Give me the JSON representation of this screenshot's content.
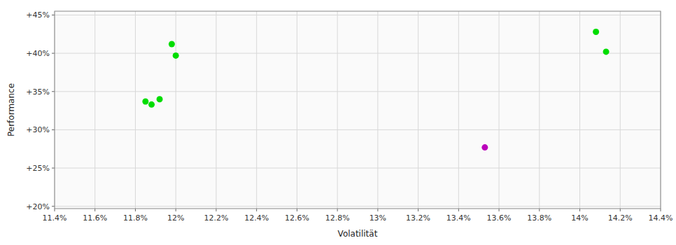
{
  "chart_data": {
    "type": "scatter",
    "xlabel": "Volatilität",
    "ylabel": "Performance",
    "xlim": [
      0.114,
      0.144
    ],
    "ylim": [
      0.197,
      0.455
    ],
    "xticks": [
      {
        "value": 0.114,
        "label": "11.4%"
      },
      {
        "value": 0.116,
        "label": "11.6%"
      },
      {
        "value": 0.118,
        "label": "11.8%"
      },
      {
        "value": 0.12,
        "label": "12%"
      },
      {
        "value": 0.122,
        "label": "12.2%"
      },
      {
        "value": 0.124,
        "label": "12.4%"
      },
      {
        "value": 0.126,
        "label": "12.6%"
      },
      {
        "value": 0.128,
        "label": "12.8%"
      },
      {
        "value": 0.13,
        "label": "13%"
      },
      {
        "value": 0.132,
        "label": "13.2%"
      },
      {
        "value": 0.134,
        "label": "13.4%"
      },
      {
        "value": 0.136,
        "label": "13.6%"
      },
      {
        "value": 0.138,
        "label": "13.8%"
      },
      {
        "value": 0.14,
        "label": "14%"
      },
      {
        "value": 0.142,
        "label": "14.2%"
      },
      {
        "value": 0.144,
        "label": "14.4%"
      }
    ],
    "yticks": [
      {
        "value": 0.2,
        "label": "+20%"
      },
      {
        "value": 0.25,
        "label": "+25%"
      },
      {
        "value": 0.3,
        "label": "+30%"
      },
      {
        "value": 0.35,
        "label": "+35%"
      },
      {
        "value": 0.4,
        "label": "+40%"
      },
      {
        "value": 0.45,
        "label": "+45%"
      }
    ],
    "grid": true,
    "series": [
      {
        "color": "#00dd00",
        "x": [
          0.1185,
          0.1188,
          0.1192,
          0.1198,
          0.12,
          0.1408,
          0.1413
        ],
        "values": [
          0.337,
          0.333,
          0.34,
          0.412,
          0.397,
          0.428,
          0.402
        ]
      },
      {
        "color": "#bb00bb",
        "x": [
          0.1353
        ],
        "values": [
          0.277
        ]
      }
    ]
  }
}
